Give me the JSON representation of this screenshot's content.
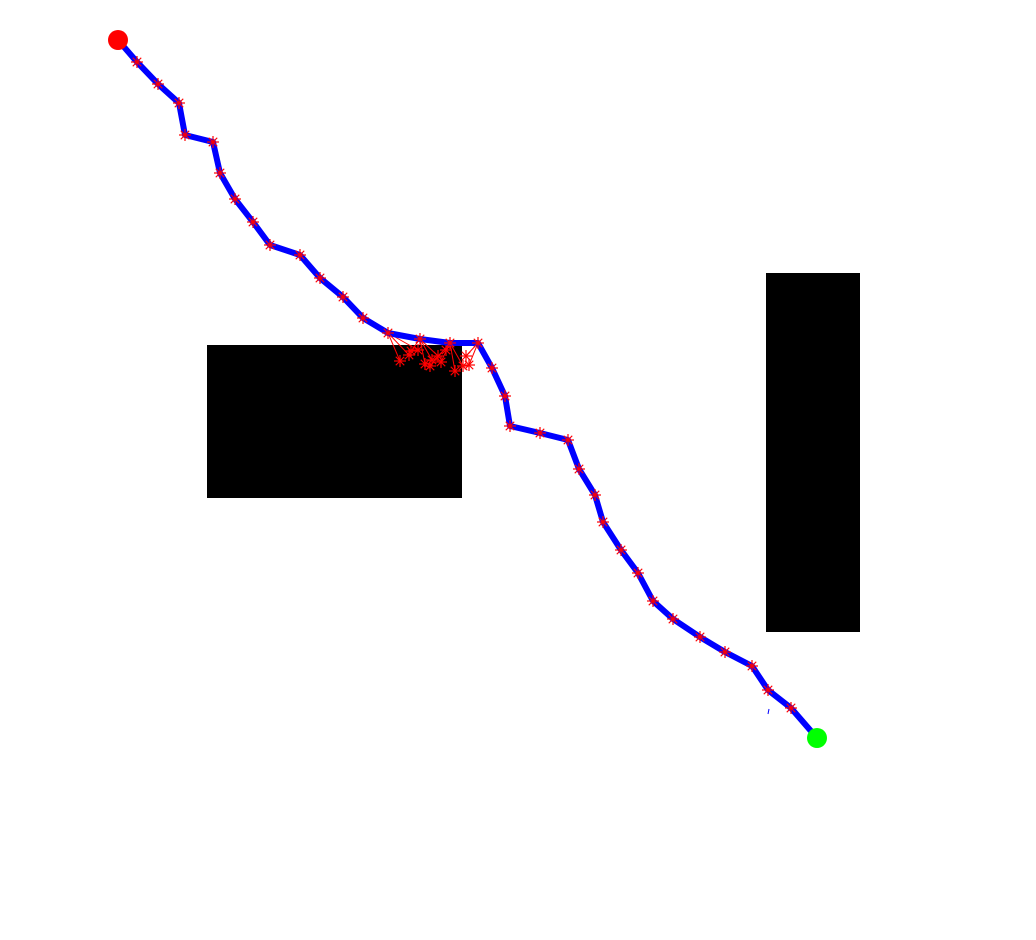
{
  "colors": {
    "background": "#ffffff",
    "obstacle": "#000000",
    "path": "#0000ff",
    "waypoint_marker": "#ff0000",
    "explored_tree": "#ff0000",
    "start_node": "#ff0000",
    "goal_node": "#00ff00"
  },
  "markers": {
    "waypoint_shape": "asterisk",
    "start_shape": "filled-circle",
    "goal_shape": "filled-circle"
  }
}
